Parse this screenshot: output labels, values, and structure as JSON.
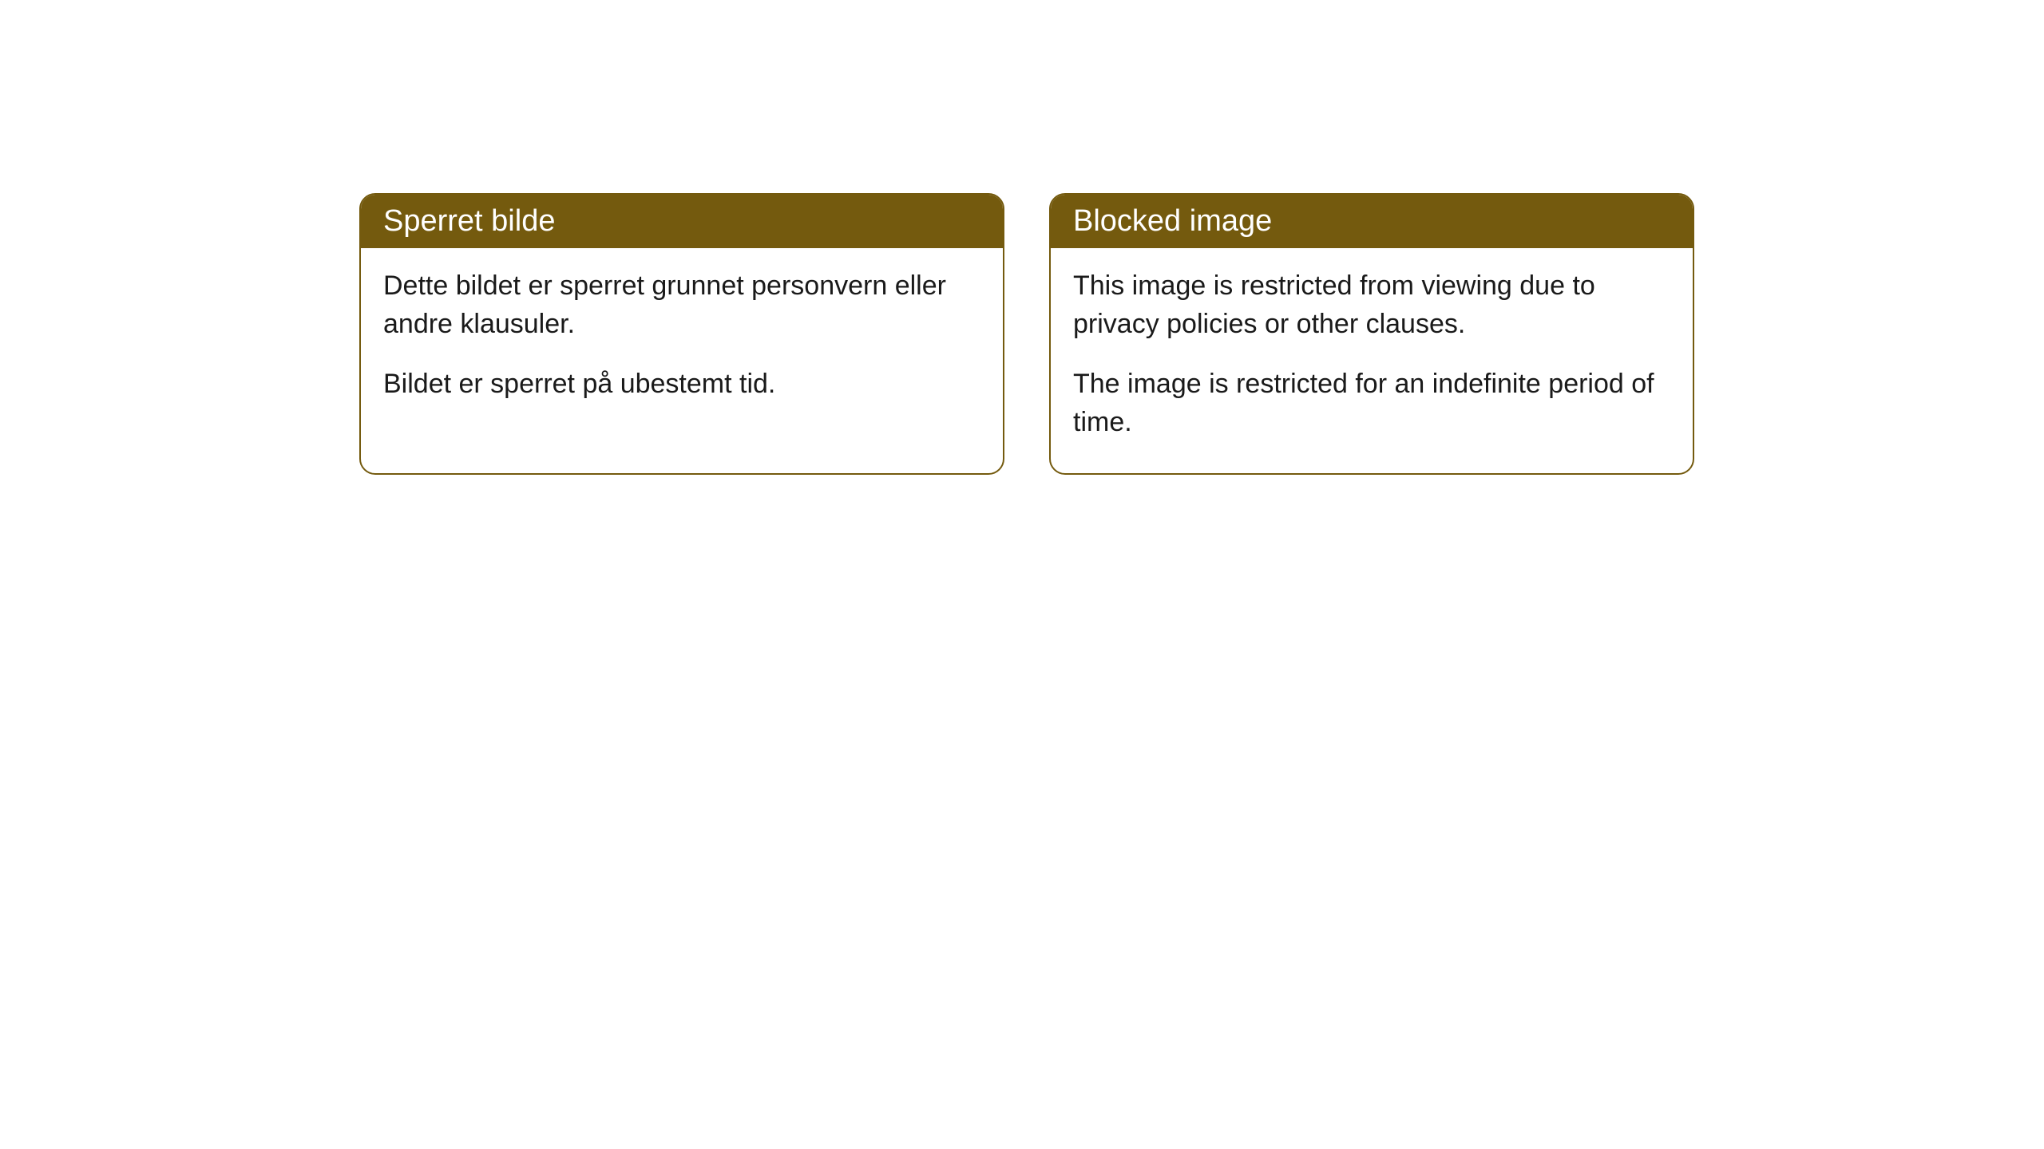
{
  "cards": [
    {
      "title": "Sperret bilde",
      "paragraph1": "Dette bildet er sperret grunnet personvern eller andre klausuler.",
      "paragraph2": "Bildet er sperret på ubestemt tid."
    },
    {
      "title": "Blocked image",
      "paragraph1": "This image is restricted from viewing due to privacy policies or other clauses.",
      "paragraph2": "The image is restricted for an indefinite period of time."
    }
  ],
  "style": {
    "header_background": "#745a0e",
    "header_text_color": "#ffffff",
    "border_color": "#745a0e",
    "body_background": "#ffffff",
    "body_text_color": "#1a1a1a",
    "border_radius": 20,
    "title_fontsize": 38,
    "body_fontsize": 34
  }
}
